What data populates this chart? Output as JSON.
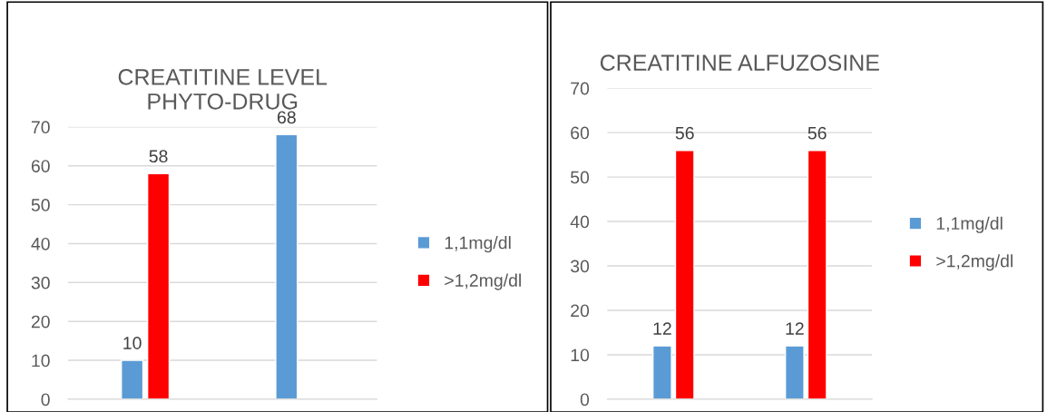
{
  "chart_data": [
    {
      "type": "bar",
      "title": "CREATITINE LEVEL\nPHYTO-DRUG",
      "categories": [
        null,
        null
      ],
      "series": [
        {
          "name": "1,1mg/dl",
          "color": "#5b9bd5",
          "values": [
            10,
            68
          ]
        },
        {
          "name": ">1,2mg/dl",
          "color": "#ff0000",
          "values": [
            58,
            null
          ]
        }
      ],
      "ylim": [
        0,
        70
      ],
      "yticks": [
        0,
        10,
        20,
        30,
        40,
        50,
        60,
        70
      ],
      "grid": "y",
      "legend": "right",
      "data_labels": true,
      "tick_labels": "y"
    },
    {
      "type": "bar",
      "title": "CREATITINE ALFUZOSINE",
      "categories": [
        null,
        null
      ],
      "series": [
        {
          "name": "1,1mg/dl",
          "color": "#5b9bd5",
          "values": [
            12,
            12
          ]
        },
        {
          "name": ">1,2mg/dl",
          "color": "#ff0000",
          "values": [
            56,
            56
          ]
        }
      ],
      "ylim": [
        0,
        70
      ],
      "yticks": [
        0,
        10,
        20,
        30,
        40,
        50,
        60,
        70
      ],
      "grid": "y",
      "legend": "right",
      "data_labels": true,
      "tick_labels": "y"
    }
  ]
}
